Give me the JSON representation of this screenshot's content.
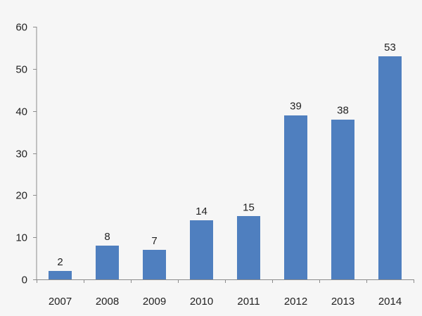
{
  "chart_data": {
    "type": "bar",
    "title": "",
    "xlabel": "",
    "ylabel": "",
    "categories": [
      "2007",
      "2008",
      "2009",
      "2010",
      "2011",
      "2012",
      "2013",
      "2014"
    ],
    "values": [
      2,
      8,
      7,
      14,
      15,
      39,
      38,
      53
    ],
    "data_labels": [
      "2",
      "8",
      "7",
      "14",
      "15",
      "39",
      "38",
      "53"
    ],
    "ylim": [
      0,
      60
    ],
    "y_ticks": [
      0,
      10,
      20,
      30,
      40,
      50,
      60
    ],
    "y_tick_labels": [
      "0",
      "10",
      "20",
      "30",
      "40",
      "50",
      "60"
    ],
    "grid": false,
    "legend": "none",
    "bar_color": "#4f7fbf",
    "background_color": "#f6f6f6"
  }
}
